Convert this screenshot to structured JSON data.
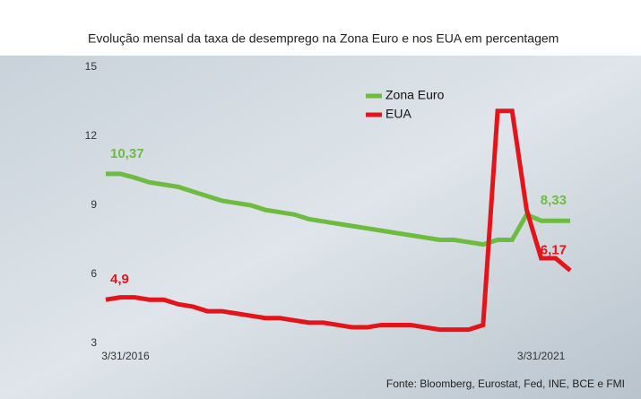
{
  "chart_data": {
    "type": "line",
    "title": "Evolução mensal da taxa de desemprego na Zona Euro e nos EUA em percentagem",
    "source": "Fonte: Bloomberg, Eurostat, Fed, INE, BCE e FMI",
    "categories": [
      "3/31/2016",
      null,
      null,
      null,
      null,
      null,
      null,
      null,
      null,
      null,
      null,
      null,
      null,
      null,
      null,
      null,
      null,
      null,
      null,
      null,
      null,
      null,
      null,
      null,
      null,
      null,
      null,
      null,
      null,
      null,
      "3/31/2021",
      null,
      null
    ],
    "series": [
      {
        "name": "Zona Euro",
        "color": "#6dbb3f",
        "values": [
          10.37,
          10.37,
          10.2,
          10.0,
          9.9,
          9.8,
          9.6,
          9.4,
          9.2,
          9.1,
          9.0,
          8.8,
          8.7,
          8.6,
          8.4,
          8.3,
          8.2,
          8.1,
          8.0,
          7.9,
          7.8,
          7.7,
          7.6,
          7.5,
          7.5,
          7.4,
          7.3,
          7.5,
          7.5,
          8.6,
          8.33,
          8.33,
          8.33
        ],
        "value_labels": [
          "10,37",
          null,
          null,
          null,
          null,
          null,
          null,
          null,
          null,
          null,
          null,
          null,
          null,
          null,
          null,
          null,
          null,
          null,
          null,
          null,
          null,
          null,
          null,
          null,
          null,
          null,
          null,
          null,
          null,
          null,
          null,
          null,
          "8,33"
        ]
      },
      {
        "name": "EUA",
        "color": "#e3151a",
        "values": [
          4.9,
          5.0,
          5.0,
          4.9,
          4.9,
          4.7,
          4.6,
          4.4,
          4.4,
          4.3,
          4.2,
          4.1,
          4.1,
          4.0,
          3.9,
          3.9,
          3.8,
          3.7,
          3.7,
          3.8,
          3.8,
          3.8,
          3.7,
          3.6,
          3.6,
          3.6,
          3.8,
          13.1,
          13.1,
          8.8,
          6.7,
          6.7,
          6.17
        ],
        "value_labels": [
          "4,9",
          null,
          null,
          null,
          null,
          null,
          null,
          null,
          null,
          null,
          null,
          null,
          null,
          null,
          null,
          null,
          null,
          null,
          null,
          null,
          null,
          null,
          null,
          null,
          null,
          null,
          null,
          null,
          null,
          null,
          null,
          null,
          "6,17"
        ]
      }
    ],
    "ylim": [
      3,
      15
    ],
    "yticks": [
      3,
      6,
      9,
      12,
      15
    ],
    "grid": false
  }
}
